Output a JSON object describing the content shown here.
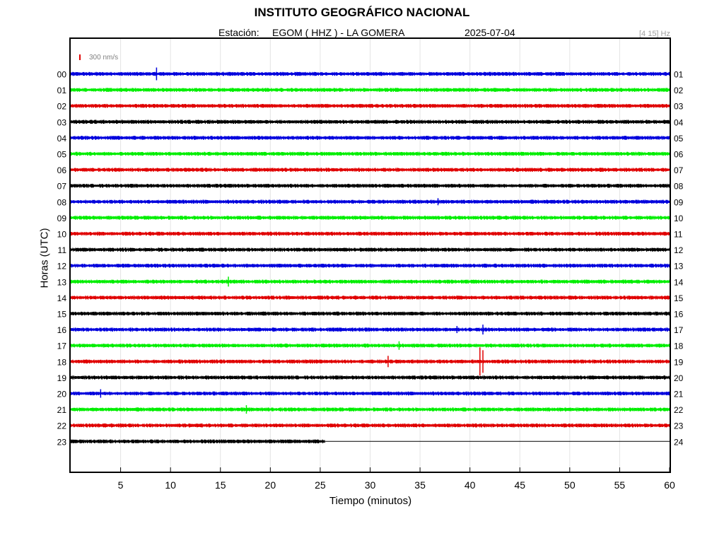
{
  "header": {
    "title": "INSTITUTO GEOGRÁFICO NACIONAL",
    "station_label": "Estación:",
    "station_value": "EGOM ( HHZ ) - LA GOMERA",
    "date": "2025-07-04",
    "filter": "[4 15] Hz"
  },
  "chart_data": {
    "type": "line",
    "title": "INSTITUTO GEOGRÁFICO NACIONAL",
    "xlabel": "Tiempo (minutos)",
    "ylabel": "Horas (UTC)",
    "xlim": [
      0,
      60
    ],
    "x_ticks": [
      5,
      10,
      15,
      20,
      25,
      30,
      35,
      40,
      45,
      50,
      55,
      60
    ],
    "left_hour_labels": [
      "00",
      "01",
      "02",
      "03",
      "04",
      "05",
      "06",
      "07",
      "08",
      "09",
      "10",
      "11",
      "12",
      "13",
      "14",
      "15",
      "16",
      "17",
      "18",
      "19",
      "20",
      "21",
      "22",
      "23"
    ],
    "right_hour_labels": [
      "01",
      "02",
      "03",
      "04",
      "05",
      "06",
      "07",
      "08",
      "09",
      "10",
      "11",
      "12",
      "13",
      "14",
      "15",
      "16",
      "17",
      "18",
      "19",
      "20",
      "21",
      "22",
      "23",
      "24"
    ],
    "scale_bar": {
      "label": "300 nm/s",
      "color": "#e00000"
    },
    "trace_colors": [
      "#0000dd",
      "#00ee00",
      "#e00000",
      "#000000"
    ],
    "last_trace_end_minute": 25.5,
    "grid": true,
    "events": [
      {
        "hour": 0,
        "minute": 8.6,
        "amp": 9
      },
      {
        "hour": 8,
        "minute": 36.8,
        "amp": 5
      },
      {
        "hour": 13,
        "minute": 15.8,
        "amp": 7
      },
      {
        "hour": 16,
        "minute": 38.7,
        "amp": 5
      },
      {
        "hour": 16,
        "minute": 41.3,
        "amp": 7
      },
      {
        "hour": 17,
        "minute": 32.9,
        "amp": 6
      },
      {
        "hour": 18,
        "minute": 31.8,
        "amp": 8
      },
      {
        "hour": 18,
        "minute": 41.0,
        "amp": 20
      },
      {
        "hour": 18,
        "minute": 41.3,
        "amp": 16
      },
      {
        "hour": 20,
        "minute": 3.0,
        "amp": 6
      },
      {
        "hour": 21,
        "minute": 17.6,
        "amp": 6
      }
    ]
  }
}
